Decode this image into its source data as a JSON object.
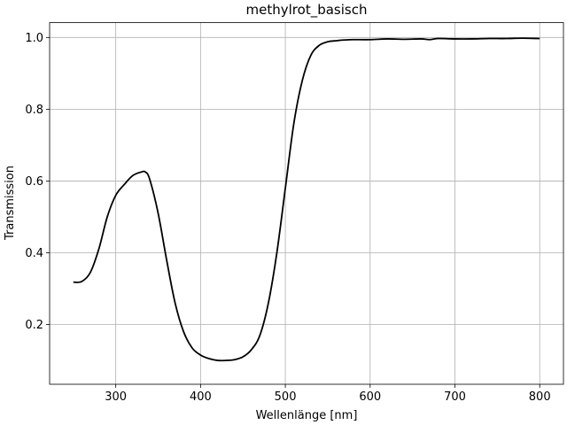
{
  "chart_data": {
    "type": "line",
    "title": "methylrot_basisch",
    "xlabel": "Wellenlänge [nm]",
    "ylabel": "Transmission",
    "xlim": [
      222,
      828
    ],
    "ylim": [
      0.0335,
      1.0415
    ],
    "xticks": [
      300,
      400,
      500,
      600,
      700,
      800
    ],
    "xtick_labels": [
      "300",
      "400",
      "500",
      "600",
      "700",
      "800"
    ],
    "yticks": [
      0.2,
      0.4,
      0.6,
      0.8,
      1.0
    ],
    "ytick_labels": [
      "0.2",
      "0.4",
      "0.6",
      "0.8",
      "1.0"
    ],
    "grid": true,
    "line_color": "#000000",
    "series": [
      {
        "x": [
          250,
          260,
          270,
          280,
          290,
          300,
          310,
          320,
          330,
          335,
          340,
          350,
          360,
          370,
          380,
          390,
          400,
          410,
          420,
          430,
          440,
          450,
          460,
          470,
          480,
          490,
          500,
          510,
          520,
          530,
          540,
          550,
          560,
          570,
          580,
          600,
          620,
          640,
          660,
          670,
          680,
          700,
          720,
          740,
          760,
          780,
          800
        ],
        "y": [
          0.318,
          0.32,
          0.345,
          0.41,
          0.5,
          0.56,
          0.59,
          0.615,
          0.625,
          0.625,
          0.605,
          0.51,
          0.38,
          0.26,
          0.18,
          0.135,
          0.115,
          0.105,
          0.1,
          0.1,
          0.102,
          0.11,
          0.13,
          0.17,
          0.26,
          0.4,
          0.58,
          0.76,
          0.88,
          0.95,
          0.978,
          0.988,
          0.991,
          0.993,
          0.994,
          0.994,
          0.996,
          0.995,
          0.996,
          0.994,
          0.997,
          0.996,
          0.996,
          0.997,
          0.997,
          0.998,
          0.997
        ]
      }
    ]
  }
}
